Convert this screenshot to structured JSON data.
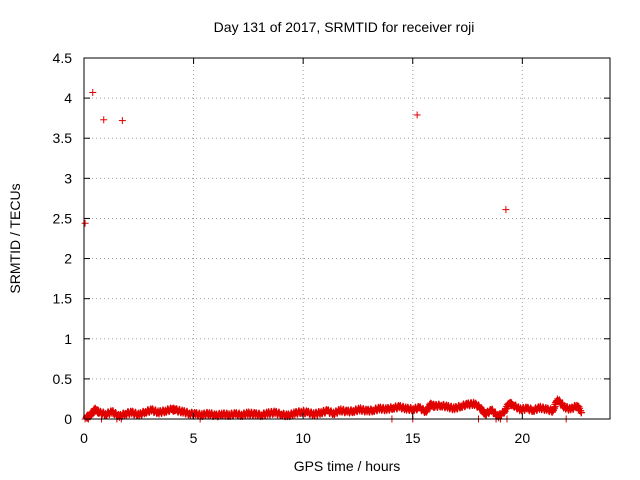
{
  "chart_data": {
    "type": "scatter",
    "title": "Day 131 of 2017, SRMTID for receiver roji",
    "xlabel": "GPS time / hours",
    "ylabel": "SRMTID / TECUs",
    "xlim": [
      0,
      24
    ],
    "ylim": [
      0,
      4.5
    ],
    "xticks": [
      0,
      5,
      10,
      15,
      20
    ],
    "yticks": [
      0,
      0.5,
      1,
      1.5,
      2,
      2.5,
      3,
      3.5,
      4,
      4.5
    ],
    "xtick_labels": [
      "0",
      "5",
      "10",
      "15",
      "20"
    ],
    "ytick_labels": [
      "0",
      "0.5",
      "1",
      "1.5",
      "2",
      "2.5",
      "3",
      "3.5",
      "4",
      "4.5"
    ],
    "grid": true,
    "marker": "plus",
    "color": "#e00000",
    "series": [
      {
        "name": "SRMTID",
        "x": [
          0.05,
          0.4,
          0.9,
          1.75,
          15.2,
          19.25,
          0.1,
          0.3,
          0.5,
          0.7,
          1.0,
          1.3,
          1.6,
          1.9,
          2.2,
          2.5,
          2.8,
          3.1,
          3.4,
          3.7,
          4.0,
          4.2,
          4.5,
          4.8,
          5.1,
          5.4,
          5.7,
          6.0,
          6.3,
          6.6,
          6.9,
          7.2,
          7.5,
          7.8,
          8.1,
          8.4,
          8.7,
          9.0,
          9.3,
          9.6,
          9.9,
          10.2,
          10.5,
          10.8,
          11.1,
          11.4,
          11.7,
          12.0,
          12.3,
          12.6,
          12.9,
          13.2,
          13.5,
          13.8,
          14.1,
          14.4,
          14.7,
          15.0,
          15.3,
          15.6,
          15.8,
          16.0,
          16.3,
          16.6,
          16.9,
          17.2,
          17.5,
          17.8,
          18.1,
          18.3,
          18.6,
          18.9,
          19.2,
          19.4,
          19.6,
          19.9,
          20.2,
          20.5,
          20.8,
          21.1,
          21.4,
          21.6,
          21.9,
          22.2,
          22.5,
          22.7,
          0.05,
          0.2,
          0.8,
          1.5,
          1.7,
          5.3,
          14.05,
          15.0,
          18.0,
          18.8,
          19.0,
          19.3,
          22.0
        ],
        "y": [
          2.44,
          4.07,
          3.73,
          3.72,
          3.79,
          2.61,
          0.02,
          0.05,
          0.12,
          0.08,
          0.06,
          0.09,
          0.03,
          0.07,
          0.08,
          0.05,
          0.09,
          0.11,
          0.08,
          0.1,
          0.12,
          0.11,
          0.09,
          0.07,
          0.06,
          0.05,
          0.07,
          0.04,
          0.06,
          0.05,
          0.06,
          0.05,
          0.07,
          0.06,
          0.05,
          0.07,
          0.08,
          0.06,
          0.04,
          0.07,
          0.09,
          0.08,
          0.06,
          0.08,
          0.1,
          0.07,
          0.11,
          0.09,
          0.1,
          0.12,
          0.1,
          0.11,
          0.13,
          0.12,
          0.14,
          0.15,
          0.13,
          0.12,
          0.14,
          0.09,
          0.18,
          0.16,
          0.17,
          0.15,
          0.13,
          0.16,
          0.18,
          0.19,
          0.14,
          0.06,
          0.11,
          0.03,
          0.1,
          0.2,
          0.17,
          0.12,
          0.13,
          0.11,
          0.14,
          0.12,
          0.1,
          0.25,
          0.15,
          0.12,
          0.17,
          0.08,
          0.0,
          0.0,
          0.0,
          0.0,
          0.0,
          0.0,
          0.0,
          0.0,
          0.0,
          0.0,
          0.0,
          0.0,
          0.0
        ]
      }
    ]
  }
}
